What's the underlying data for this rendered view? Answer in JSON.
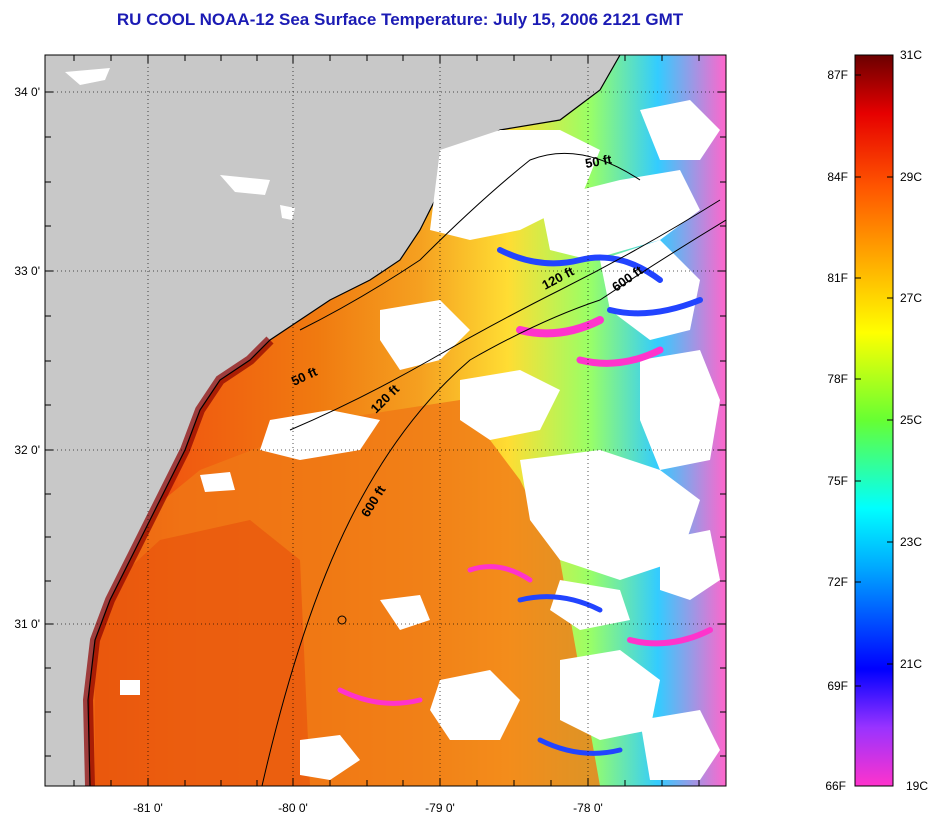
{
  "title": "RU COOL  NOAA-12  Sea Surface Temperature:  July 15, 2006 2121 GMT",
  "map": {
    "lon_ticks": [
      "-81 0'",
      "-80 0'",
      "-79 0'",
      "-78 0'"
    ],
    "lat_ticks": [
      "34 0'",
      "33 0'",
      "32 0'",
      "31 0'"
    ],
    "contours": [
      {
        "label": "50 ft",
        "id": "north"
      },
      {
        "label": "120 ft",
        "id": "north"
      },
      {
        "label": "600 ft",
        "id": "north"
      },
      {
        "label": "50 ft",
        "id": "mid"
      },
      {
        "label": "120 ft",
        "id": "mid"
      },
      {
        "label": "600 ft",
        "id": "mid"
      }
    ],
    "colors": {
      "land": "#c8c8c8",
      "cloud": "#ffffff",
      "coast": "#000000"
    }
  },
  "colorbar": {
    "fahrenheit": [
      "87F",
      "84F",
      "81F",
      "78F",
      "75F",
      "72F",
      "69F",
      "66F"
    ],
    "celsius": [
      "31C",
      "29C",
      "27C",
      "25C",
      "23C",
      "21C",
      "19C"
    ],
    "range_c": [
      19,
      31
    ]
  }
}
